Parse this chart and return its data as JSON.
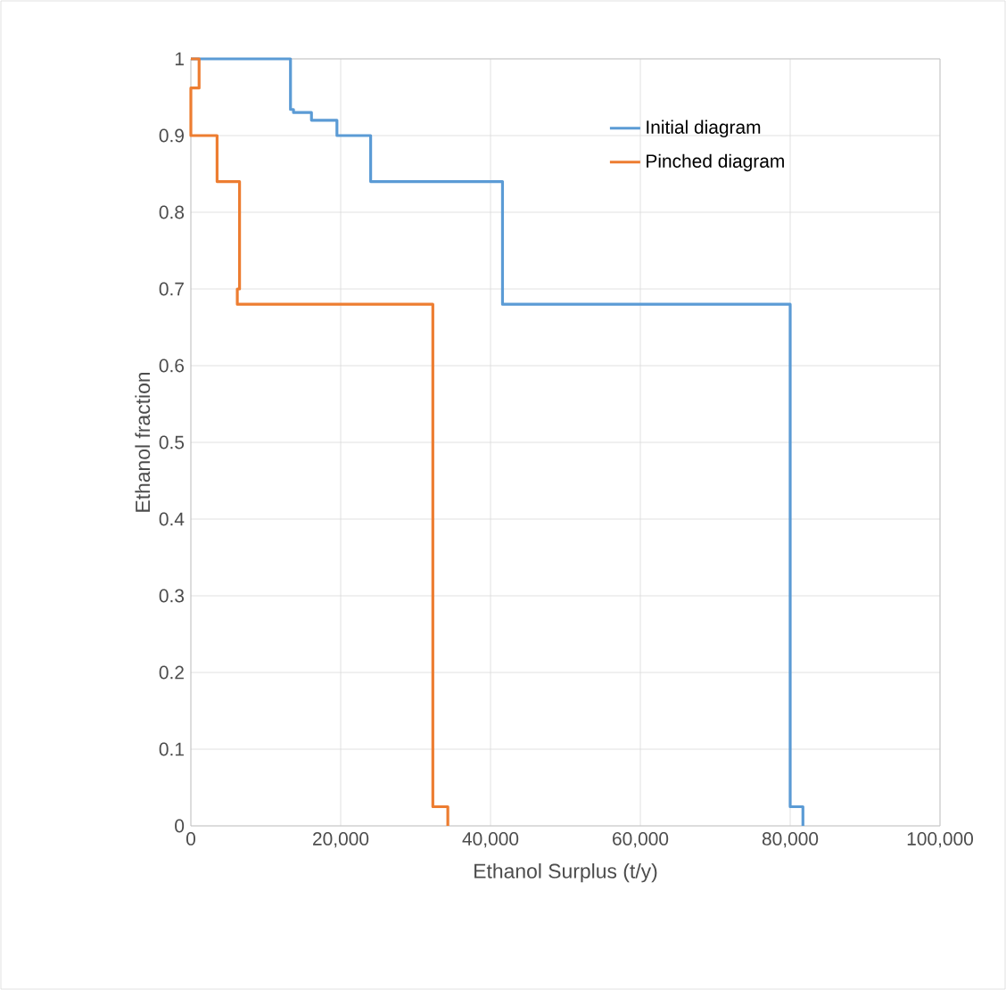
{
  "chart_data": {
    "type": "line",
    "xlabel": "Ethanol Surplus (t/y)",
    "ylabel": "Ethanol fraction",
    "xlim": [
      0,
      100000
    ],
    "ylim": [
      0,
      1
    ],
    "xticks": [
      0,
      {
        "value": 20000,
        "label": "20,000"
      },
      {
        "value": 40000,
        "label": "40,000"
      },
      {
        "value": 60000,
        "label": "60,000"
      },
      {
        "value": 80000,
        "label": "80,000"
      },
      {
        "value": 100000,
        "label": "100,000"
      }
    ],
    "yticks": [
      0,
      0.1,
      0.2,
      0.3,
      0.4,
      0.5,
      0.6,
      0.7,
      0.8,
      0.9,
      1
    ],
    "grid": true,
    "legend": "top right",
    "marker": "none",
    "line_style": "solid",
    "series": [
      {
        "name": "Initial diagram",
        "color": "#5b9bd5",
        "x": [
          0,
          13300,
          13300,
          13700,
          13700,
          16100,
          16100,
          19500,
          19500,
          24000,
          24000,
          41600,
          41600,
          80000,
          80000,
          81700,
          81700
        ],
        "values": [
          1,
          1,
          0.934,
          0.934,
          0.93,
          0.93,
          0.92,
          0.92,
          0.9,
          0.9,
          0.84,
          0.84,
          0.68,
          0.68,
          0.025,
          0.025,
          0
        ]
      },
      {
        "name": "Pinched diagram",
        "color": "#ed7d31",
        "x": [
          0,
          1100,
          1100,
          0,
          0,
          3500,
          3500,
          6500,
          6500,
          6200,
          6200,
          32300,
          32300,
          34300,
          34300
        ],
        "values": [
          1,
          1,
          0.962,
          0.962,
          0.9,
          0.9,
          0.84,
          0.84,
          0.7,
          0.7,
          0.68,
          0.68,
          0.025,
          0.025,
          0
        ]
      }
    ]
  }
}
